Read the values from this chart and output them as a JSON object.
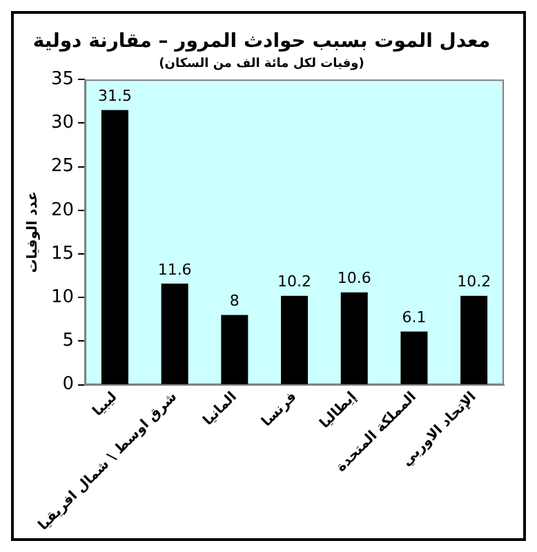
{
  "chart_data": {
    "type": "bar",
    "title": "معدل الموت بسبب حوادث المرور – مقارنة دولية",
    "subtitle": "(وفيات لكل مائة الف من السكان)",
    "ylabel": "عدد الوفيات",
    "categories": [
      "ليبيا",
      "شرق اوسط \\ شمال افريقيا",
      "المانيا",
      "فرنسا",
      "إيطاليا",
      "المملكة المتحدة",
      "الإتحاد الاوربي"
    ],
    "values": [
      31.5,
      11.6,
      8,
      10.2,
      10.6,
      6.1,
      10.2
    ],
    "color": "#000000",
    "ylim": [
      0,
      35
    ],
    "yticks": [
      0,
      5,
      10,
      15,
      20,
      25,
      30,
      35
    ],
    "grid": false,
    "legend": false,
    "data_labels": true
  }
}
